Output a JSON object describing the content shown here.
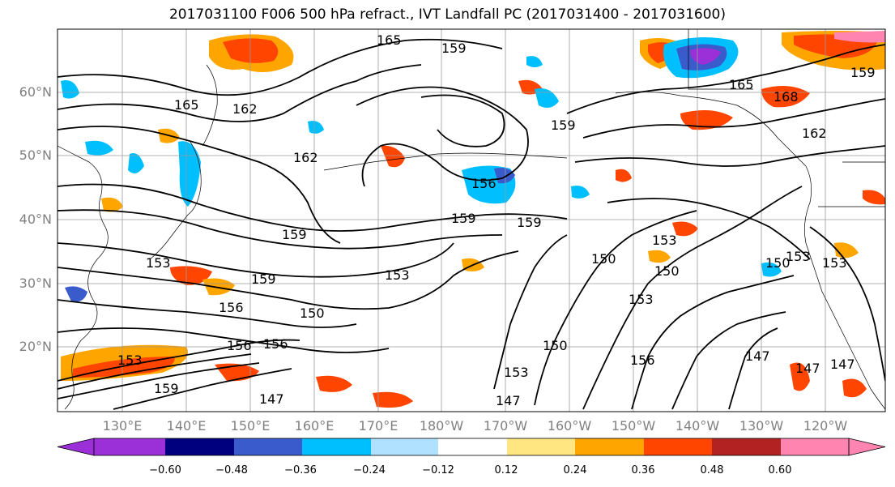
{
  "title": "2017031100 F006 500 hPa refract., IVT Landfall PC (2017031400 - 2017031600)",
  "lat_labels": [
    "60°N",
    "50°N",
    "40°N",
    "30°N",
    "20°N"
  ],
  "lon_labels": [
    "130°E",
    "140°E",
    "150°E",
    "160°E",
    "170°E",
    "180°W",
    "170°W",
    "160°W",
    "150°W",
    "140°W",
    "130°W",
    "120°W"
  ],
  "contour_labels": [
    "165",
    "159",
    "165",
    "162",
    "162",
    "159",
    "165",
    "168",
    "162",
    "159",
    "156",
    "159",
    "159",
    "159",
    "153",
    "159",
    "156",
    "153",
    "150",
    "156",
    "153",
    "159",
    "156",
    "147",
    "153",
    "150",
    "153",
    "150",
    "147",
    "156",
    "150",
    "147",
    "147",
    "153",
    "153",
    "150",
    "147",
    "153"
  ],
  "colorbar": {
    "ticks": [
      "−0.60",
      "−0.48",
      "−0.36",
      "−0.24",
      "−0.12",
      "0.12",
      "0.24",
      "0.36",
      "0.48",
      "0.60"
    ],
    "colors": [
      "#9b30d8",
      "#00007f",
      "#3a5bcc",
      "#00bfff",
      "#b0e2ff",
      "#ffffff",
      "#ffe680",
      "#ffa500",
      "#ff4500",
      "#b22222",
      "#ff85b0",
      "#ff85b0"
    ]
  }
}
